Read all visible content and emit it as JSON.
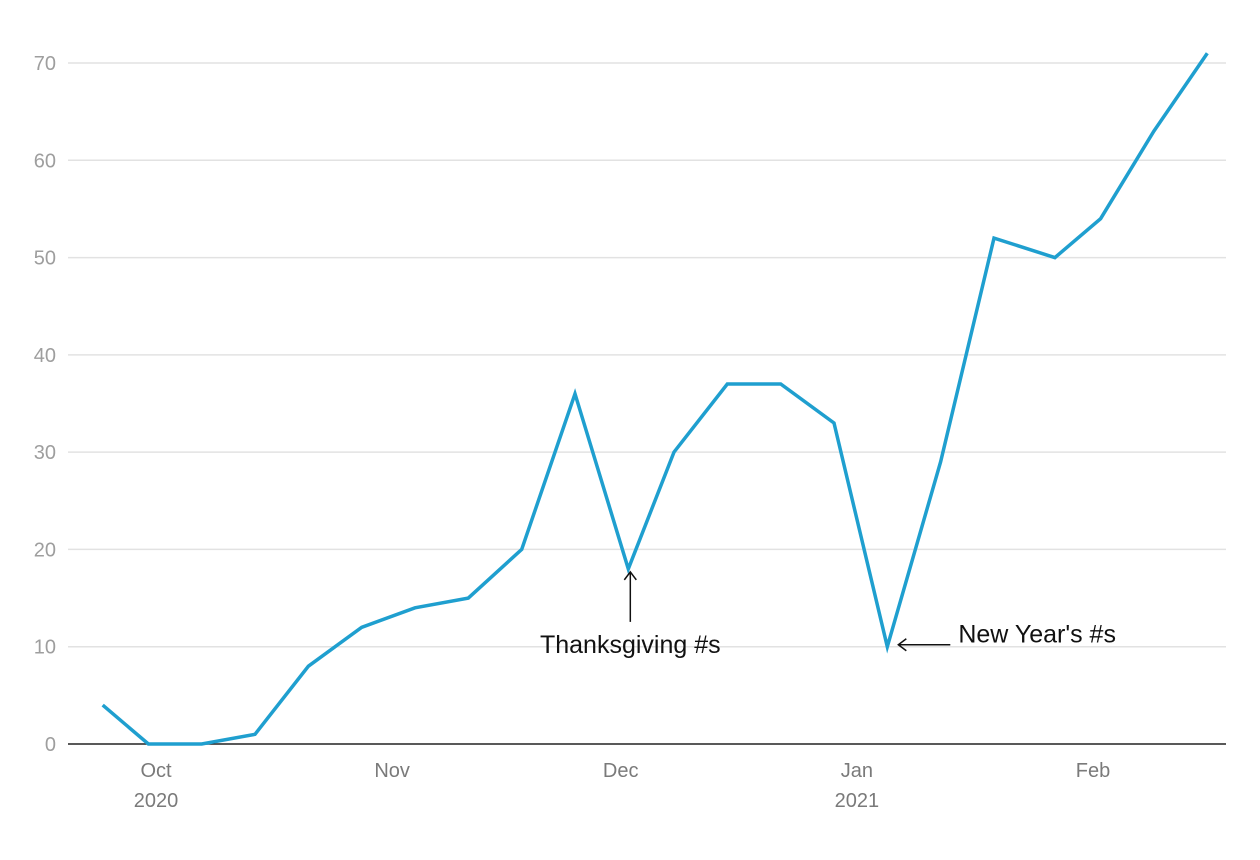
{
  "chart_data": {
    "type": "line",
    "title": "",
    "xlabel": "",
    "ylabel": "",
    "grid": true,
    "ylim": [
      0,
      70
    ],
    "yticks": [
      0,
      10,
      20,
      30,
      40,
      50,
      60,
      70
    ],
    "xticks": [
      {
        "date": "2020-10-01",
        "label": "Oct",
        "sublabel": "2020"
      },
      {
        "date": "2020-11-01",
        "label": "Nov",
        "sublabel": ""
      },
      {
        "date": "2020-12-01",
        "label": "Dec",
        "sublabel": ""
      },
      {
        "date": "2021-01-01",
        "label": "Jan",
        "sublabel": "2021"
      },
      {
        "date": "2021-02-01",
        "label": "Feb",
        "sublabel": ""
      }
    ],
    "line_color": "#1f9fcf",
    "series": [
      {
        "points": [
          {
            "x": "2020-09-24",
            "y": 4
          },
          {
            "x": "2020-09-30",
            "y": 0
          },
          {
            "x": "2020-10-07",
            "y": 0
          },
          {
            "x": "2020-10-14",
            "y": 1
          },
          {
            "x": "2020-10-21",
            "y": 8
          },
          {
            "x": "2020-10-28",
            "y": 12
          },
          {
            "x": "2020-11-04",
            "y": 14
          },
          {
            "x": "2020-11-11",
            "y": 15
          },
          {
            "x": "2020-11-18",
            "y": 20
          },
          {
            "x": "2020-11-25",
            "y": 36
          },
          {
            "x": "2020-12-02",
            "y": 18
          },
          {
            "x": "2020-12-08",
            "y": 30
          },
          {
            "x": "2020-12-15",
            "y": 37
          },
          {
            "x": "2020-12-22",
            "y": 37
          },
          {
            "x": "2020-12-29",
            "y": 33
          },
          {
            "x": "2021-01-05",
            "y": 10
          },
          {
            "x": "2021-01-12",
            "y": 29
          },
          {
            "x": "2021-01-19",
            "y": 52
          },
          {
            "x": "2021-01-27",
            "y": 50
          },
          {
            "x": "2021-02-02",
            "y": 54
          },
          {
            "x": "2021-02-09",
            "y": 63
          },
          {
            "x": "2021-02-16",
            "y": 71
          }
        ]
      }
    ],
    "annotations": [
      {
        "text": "Thanksgiving #s",
        "target": {
          "x": "2020-12-02",
          "y": 18
        },
        "arrow": "up"
      },
      {
        "text": "New Year's #s",
        "target": {
          "x": "2021-01-05",
          "y": 10
        },
        "arrow": "left"
      }
    ]
  }
}
